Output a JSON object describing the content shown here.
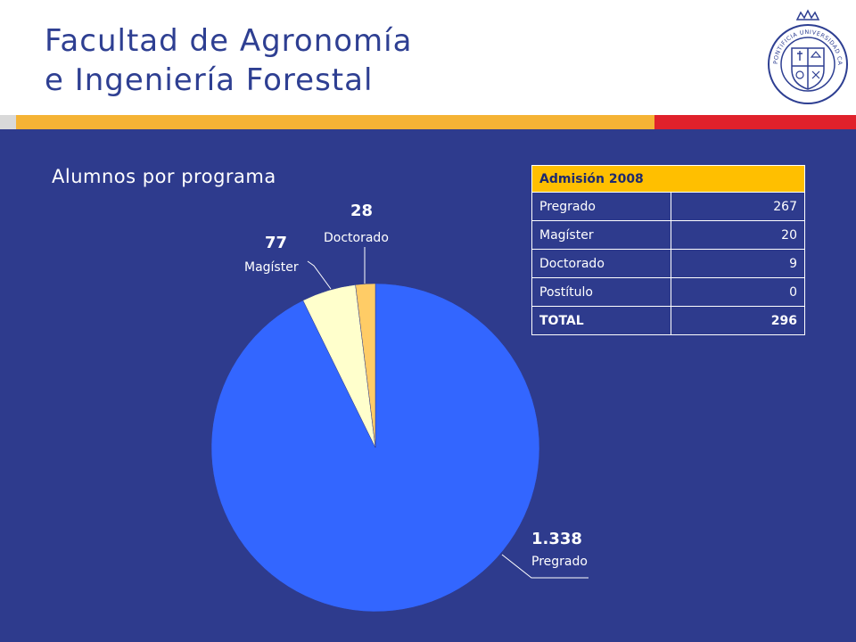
{
  "header": {
    "title_line1": "Facultad de Agronomía",
    "title_line2": "e Ingeniería Forestal",
    "seal_text": "PONTIFICIA UNIVERSIDAD CATÓLICA DE CHILE"
  },
  "colors": {
    "title": "#2e3f92",
    "background": "#2e3b8d",
    "accent_orange": "#f5b335",
    "accent_red": "#e0212b",
    "table_header": "#ffbf00"
  },
  "subtitle": "Alumnos por programa",
  "chart_data": {
    "type": "pie",
    "title": "Alumnos por programa",
    "slices": [
      {
        "label": "Pregrado",
        "value": 1338,
        "value_label": "1.338",
        "color": "#3366ff"
      },
      {
        "label": "Magíster",
        "value": 77,
        "value_label": "77",
        "color": "#ffffcc"
      },
      {
        "label": "Doctorado",
        "value": 28,
        "value_label": "28",
        "color": "#ffcc66"
      }
    ]
  },
  "table": {
    "header": "Admisión 2008",
    "rows": [
      {
        "label": "Pregrado",
        "value": "267"
      },
      {
        "label": "Magíster",
        "value": "20"
      },
      {
        "label": "Doctorado",
        "value": "9"
      },
      {
        "label": "Postítulo",
        "value": "0"
      }
    ],
    "total": {
      "label": "TOTAL",
      "value": "296"
    }
  }
}
